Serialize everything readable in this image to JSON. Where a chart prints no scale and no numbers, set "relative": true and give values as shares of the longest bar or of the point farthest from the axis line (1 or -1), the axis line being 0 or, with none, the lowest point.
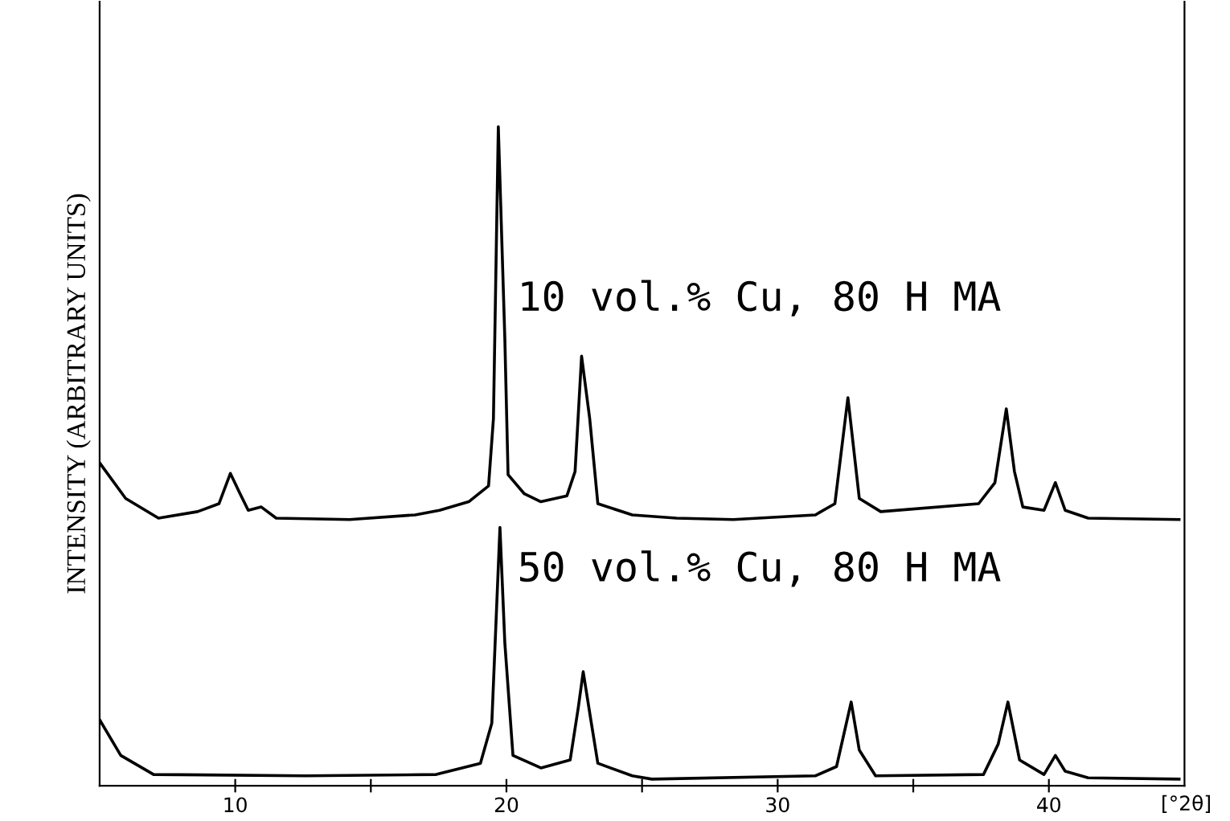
{
  "chart_data": {
    "type": "line",
    "relative": true,
    "ylabel": "INTENSITY (ARBITRARY UNITS)",
    "xlabel": "[°2θ]",
    "xlim": [
      5,
      45
    ],
    "xticks": [
      10,
      {
        "value": 15,
        "label": null
      },
      20,
      {
        "value": 25,
        "label": null
      },
      30,
      {
        "value": 35,
        "label": null
      },
      40
    ],
    "grid": false,
    "legend": false,
    "marker": "none",
    "line_style": "solid",
    "series": [
      {
        "name": "10 vol.% Cu, 80 H MA",
        "color": "#000000",
        "x": [
          5.0,
          5.96,
          7.17,
          8.61,
          9.4,
          9.82,
          10.18,
          10.48,
          10.96,
          11.51,
          14.22,
          16.63,
          17.53,
          18.61,
          19.34,
          19.52,
          19.7,
          19.94,
          20.06,
          20.66,
          21.27,
          22.23,
          22.53,
          22.77,
          23.07,
          23.37,
          24.64,
          26.27,
          28.37,
          31.39,
          32.11,
          32.59,
          33.01,
          33.8,
          37.41,
          38.01,
          38.43,
          38.73,
          39.04,
          39.82,
          40.24,
          40.6,
          41.45,
          44.8
        ],
        "values": [
          0.49,
          0.436,
          0.406,
          0.416,
          0.428,
          0.474,
          0.443,
          0.418,
          0.423,
          0.406,
          0.404,
          0.411,
          0.418,
          0.431,
          0.455,
          0.557,
          1.0,
          0.679,
          0.472,
          0.443,
          0.431,
          0.44,
          0.477,
          0.652,
          0.557,
          0.428,
          0.411,
          0.406,
          0.404,
          0.411,
          0.428,
          0.589,
          0.436,
          0.416,
          0.428,
          0.46,
          0.572,
          0.477,
          0.423,
          0.418,
          0.46,
          0.418,
          0.406,
          0.404
        ]
      },
      {
        "name": "50 vol.% Cu, 80 H MA",
        "color": "#000000",
        "x": [
          5.0,
          5.78,
          6.99,
          12.59,
          17.41,
          19.04,
          19.46,
          19.76,
          19.94,
          20.24,
          21.27,
          22.35,
          22.65,
          22.83,
          23.13,
          23.37,
          24.64,
          25.36,
          31.39,
          32.17,
          32.71,
          33.01,
          33.61,
          37.59,
          38.13,
          38.49,
          38.92,
          39.82,
          40.24,
          40.6,
          41.45,
          44.8
        ],
        "values": [
          0.1,
          0.046,
          0.017,
          0.015,
          0.017,
          0.034,
          0.095,
          0.392,
          0.217,
          0.046,
          0.027,
          0.039,
          0.119,
          0.173,
          0.095,
          0.034,
          0.015,
          0.01,
          0.015,
          0.029,
          0.127,
          0.054,
          0.015,
          0.017,
          0.063,
          0.127,
          0.039,
          0.017,
          0.046,
          0.022,
          0.012,
          0.01
        ]
      }
    ]
  }
}
